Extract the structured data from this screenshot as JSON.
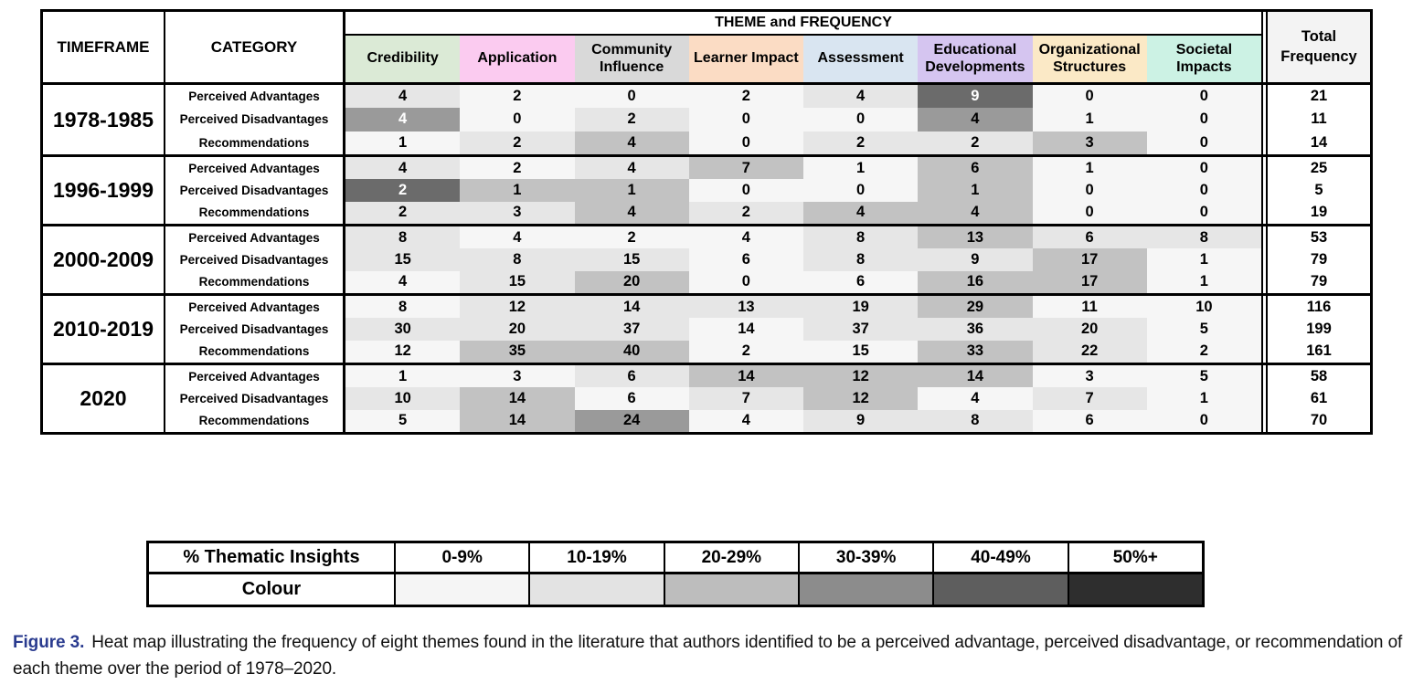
{
  "figure": {
    "caption_label": "Figure 3.",
    "caption_text": "Heat map illustrating the frequency of eight themes found in the literature that authors identified to be a perceived advantage, perceived disadvantage, or recommendation of each theme over the period of 1978–2020."
  },
  "table": {
    "header": {
      "timeframe_label": "TIMEFRAME",
      "category_label": "CATEGORY",
      "banner_label": "THEME and FREQUENCY",
      "total_label": "Total Frequency"
    },
    "theme_colors": [
      "#dbead6",
      "#fbcbf0",
      "#d9d9d9",
      "#fbdcc4",
      "#d9e5f1",
      "#d5c5f0",
      "#fbe9c6",
      "#ccf2e4"
    ],
    "bucket_colors": [
      "#f6f6f6",
      "#e6e6e6",
      "#c2c2c2",
      "#9a9a9a",
      "#6b6b6b",
      "#2f2f2f"
    ],
    "white_text_cells": [
      {
        "row": 1,
        "col": 0
      }
    ],
    "bucket_overrides": [
      {
        "row": 13,
        "col": 4,
        "bucket": 2
      }
    ]
  },
  "legend": {
    "title": "% Thematic Insights",
    "colour_label": "Colour",
    "bins": [
      {
        "label": "0-9%",
        "color": "#f5f5f5"
      },
      {
        "label": "10-19%",
        "color": "#e3e3e3"
      },
      {
        "label": "20-29%",
        "color": "#bdbdbd"
      },
      {
        "label": "30-39%",
        "color": "#8c8c8c"
      },
      {
        "label": "40-49%",
        "color": "#5e5e5e"
      },
      {
        "label": "50%+",
        "color": "#2e2e2e"
      }
    ]
  },
  "chart_data": {
    "type": "heatmap",
    "title": "THEME and FREQUENCY",
    "shading_rule": "cell shade = cell value as percent of row Total Frequency, binned per legend (0-9%, 10-19%, 20-29%, 30-39%, 40-49%, 50%+)",
    "columns": [
      "Credibility",
      "Application",
      "Community Influence",
      "Learner Impact",
      "Assessment",
      "Educational Developments",
      "Organizational Structures",
      "Societal Impacts"
    ],
    "legend_bins": [
      "0-9%",
      "10-19%",
      "20-29%",
      "30-39%",
      "40-49%",
      "50%+"
    ],
    "rows": [
      {
        "timeframe": "1978-1985",
        "category": "Perceived Advantages",
        "values": [
          4,
          2,
          0,
          2,
          4,
          9,
          0,
          0
        ],
        "total": 21
      },
      {
        "timeframe": "1978-1985",
        "category": "Perceived Disadvantages",
        "values": [
          4,
          0,
          2,
          0,
          0,
          4,
          1,
          0
        ],
        "total": 11
      },
      {
        "timeframe": "1978-1985",
        "category": "Recommendations",
        "values": [
          1,
          2,
          4,
          0,
          2,
          2,
          3,
          0
        ],
        "total": 14
      },
      {
        "timeframe": "1996-1999",
        "category": "Perceived Advantages",
        "values": [
          4,
          2,
          4,
          7,
          1,
          6,
          1,
          0
        ],
        "total": 25
      },
      {
        "timeframe": "1996-1999",
        "category": "Perceived Disadvantages",
        "values": [
          2,
          1,
          1,
          0,
          0,
          1,
          0,
          0
        ],
        "total": 5
      },
      {
        "timeframe": "1996-1999",
        "category": "Recommendations",
        "values": [
          2,
          3,
          4,
          2,
          4,
          4,
          0,
          0
        ],
        "total": 19
      },
      {
        "timeframe": "2000-2009",
        "category": "Perceived Advantages",
        "values": [
          8,
          4,
          2,
          4,
          8,
          13,
          6,
          8
        ],
        "total": 53
      },
      {
        "timeframe": "2000-2009",
        "category": "Perceived Disadvantages",
        "values": [
          15,
          8,
          15,
          6,
          8,
          9,
          17,
          1
        ],
        "total": 79
      },
      {
        "timeframe": "2000-2009",
        "category": "Recommendations",
        "values": [
          4,
          15,
          20,
          0,
          6,
          16,
          17,
          1
        ],
        "total": 79
      },
      {
        "timeframe": "2010-2019",
        "category": "Perceived Advantages",
        "values": [
          8,
          12,
          14,
          13,
          19,
          29,
          11,
          10
        ],
        "total": 116
      },
      {
        "timeframe": "2010-2019",
        "category": "Perceived Disadvantages",
        "values": [
          30,
          20,
          37,
          14,
          37,
          36,
          20,
          5
        ],
        "total": 199
      },
      {
        "timeframe": "2010-2019",
        "category": "Recommendations",
        "values": [
          12,
          35,
          40,
          2,
          15,
          33,
          22,
          2
        ],
        "total": 161
      },
      {
        "timeframe": "2020",
        "category": "Perceived Advantages",
        "values": [
          1,
          3,
          6,
          14,
          12,
          14,
          3,
          5
        ],
        "total": 58
      },
      {
        "timeframe": "2020",
        "category": "Perceived Disadvantages",
        "values": [
          10,
          14,
          6,
          7,
          12,
          4,
          7,
          1
        ],
        "total": 61
      },
      {
        "timeframe": "2020",
        "category": "Recommendations",
        "values": [
          5,
          14,
          24,
          4,
          9,
          8,
          6,
          0
        ],
        "total": 70
      }
    ]
  }
}
